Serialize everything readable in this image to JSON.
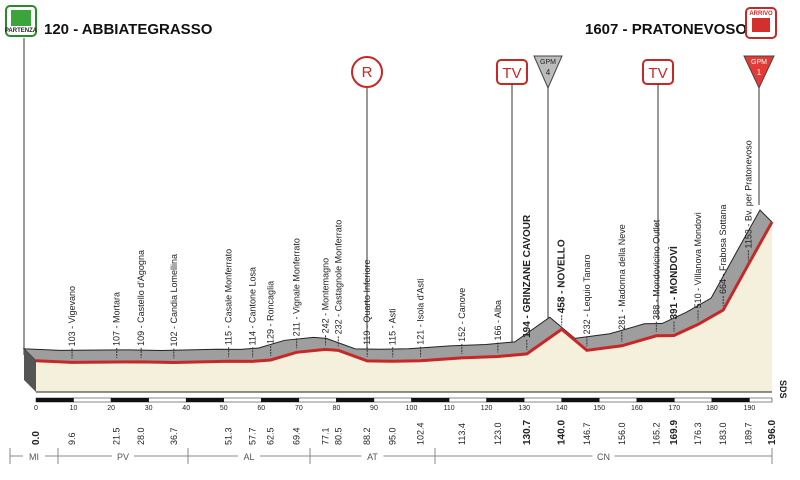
{
  "chart_data": {
    "type": "profile",
    "start": {
      "label": "120 - ABBIATEGRASSO",
      "icon": "PARTENZA",
      "km": {
        "value": 0,
        "label": "0.0"
      },
      "altitude": 120,
      "bold": true
    },
    "finish": {
      "label": "1607 - PRATONEVOSO",
      "icon": "ARRIVO",
      "km": {
        "value": 196,
        "label": "196.0"
      },
      "altitude": 1607,
      "bold": true
    },
    "waypoints": [
      {
        "label": "103 - Vigevano",
        "km": {
          "value": 9.6,
          "label": "9.6"
        },
        "altitude": 103,
        "bold": false
      },
      {
        "label": "107 - Mortara",
        "km": {
          "value": 21.5,
          "label": "21.5"
        },
        "altitude": 107,
        "bold": false
      },
      {
        "label": "109 - Castello d'Agogna",
        "km": {
          "value": 28,
          "label": "28.0"
        },
        "altitude": 109,
        "bold": false
      },
      {
        "label": "102 - Candia Lomellina",
        "km": {
          "value": 36.7,
          "label": "36.7"
        },
        "altitude": 102,
        "bold": false
      },
      {
        "label": "115 - Casale Monferrato",
        "km": {
          "value": 51.3,
          "label": "51.3"
        },
        "altitude": 115,
        "bold": false
      },
      {
        "label": "114 - Cantone Losa",
        "km": {
          "value": 57.7,
          "label": "57.7"
        },
        "altitude": 114,
        "bold": false
      },
      {
        "label": "129 - Roncaglia",
        "km": {
          "value": 62.5,
          "label": "62.5"
        },
        "altitude": 129,
        "bold": false
      },
      {
        "label": "211 - Vignale Monferrato",
        "km": {
          "value": 69.4,
          "label": "69.4"
        },
        "altitude": 211,
        "bold": false
      },
      {
        "label": "242 - Montemagno",
        "km": {
          "value": 77.1,
          "label": "77.1"
        },
        "altitude": 242,
        "bold": false
      },
      {
        "label": "232 - Castagnole Monferrato",
        "km": {
          "value": 80.5,
          "label": "80.5"
        },
        "altitude": 232,
        "bold": false
      },
      {
        "label": "119 - Quarto Inferiore",
        "km": {
          "value": 88.2,
          "label": "88.2"
        },
        "altitude": 119,
        "bold": false
      },
      {
        "label": "115 - Asti",
        "km": {
          "value": 95,
          "label": "95.0"
        },
        "altitude": 115,
        "bold": false
      },
      {
        "label": "121 - Isola d'Asti",
        "km": {
          "value": 102.4,
          "label": "102.4"
        },
        "altitude": 121,
        "bold": false
      },
      {
        "label": "152 - Canove",
        "km": {
          "value": 113.4,
          "label": "113.4"
        },
        "altitude": 152,
        "bold": false
      },
      {
        "label": "166 - Alba",
        "km": {
          "value": 123,
          "label": "123.0"
        },
        "altitude": 166,
        "bold": false
      },
      {
        "label": "194 - GRINZANE CAVOUR",
        "km": {
          "value": 130.7,
          "label": "130.7"
        },
        "altitude": 194,
        "bold": true
      },
      {
        "label": "458 - NOVELLO",
        "km": {
          "value": 140,
          "label": "140.0"
        },
        "altitude": 458,
        "bold": true
      },
      {
        "label": "232 - Lequio Tanaro",
        "km": {
          "value": 146.7,
          "label": "146.7"
        },
        "altitude": 232,
        "bold": false
      },
      {
        "label": "281 - Madonna della Neve",
        "km": {
          "value": 156,
          "label": "156.0"
        },
        "altitude": 281,
        "bold": false
      },
      {
        "label": "388 - Mondovicino Outlet",
        "km": {
          "value": 165.2,
          "label": "165.2"
        },
        "altitude": 388,
        "bold": false
      },
      {
        "label": "391 - MONDOVÌ",
        "km": {
          "value": 169.9,
          "label": "169.9"
        },
        "altitude": 391,
        "bold": true
      },
      {
        "label": "510 - Villanova Mondovì",
        "km": {
          "value": 176.3,
          "label": "176.3"
        },
        "altitude": 510,
        "bold": false
      },
      {
        "label": "664 - Frabosa Sottana",
        "km": {
          "value": 183,
          "label": "183.0"
        },
        "altitude": 664,
        "bold": false
      },
      {
        "label": "1153 - Bv. per Pratonevoso",
        "km": {
          "value": 189.7,
          "label": "189.7"
        },
        "altitude": 1153,
        "bold": false
      }
    ],
    "xticks": [
      0,
      10,
      20,
      30,
      40,
      50,
      60,
      70,
      80,
      90,
      100,
      110,
      120,
      130,
      140,
      150,
      160,
      170,
      180,
      190
    ],
    "regions": [
      "MI",
      "PV",
      "AL",
      "AT",
      "CN"
    ],
    "markers": {
      "sprint": "R",
      "tv": "TV",
      "gpm": "GPM",
      "gpm_novello": "4",
      "gpm_finish": "1",
      "sds": "SDS"
    }
  }
}
